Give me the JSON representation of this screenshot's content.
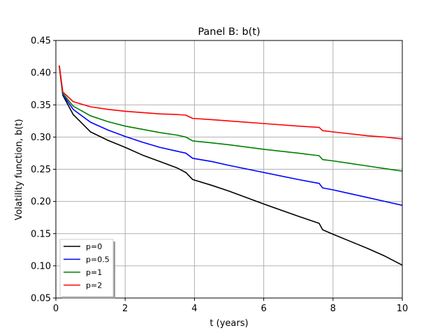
{
  "chart_data": {
    "type": "line",
    "title": "Panel B: b(t)",
    "xlabel": "t (years)",
    "ylabel": "Volatility function, b(t)",
    "xlim": [
      0,
      10
    ],
    "ylim": [
      0.05,
      0.45
    ],
    "xticks": [
      0,
      2,
      4,
      6,
      8,
      10
    ],
    "xtick_labels": [
      "0",
      "2",
      "4",
      "6",
      "8",
      "10"
    ],
    "yticks": [
      0.05,
      0.1,
      0.15,
      0.2,
      0.25,
      0.3,
      0.35,
      0.4,
      0.45
    ],
    "ytick_labels": [
      "0.05",
      "0.10",
      "0.15",
      "0.20",
      "0.25",
      "0.30",
      "0.35",
      "0.40",
      "0.45"
    ],
    "grid": true,
    "legend_position": "lower-left",
    "series": [
      {
        "name": "p=0",
        "color": "#000000",
        "x": [
          0.08,
          0.1,
          0.2,
          0.5,
          1.0,
          1.5,
          2.0,
          2.5,
          3.0,
          3.5,
          3.75,
          3.95,
          4.5,
          5.0,
          6.0,
          7.0,
          7.6,
          7.7,
          8.0,
          8.5,
          9.0,
          9.5,
          10.0
        ],
        "y": [
          0.41,
          0.41,
          0.365,
          0.335,
          0.308,
          0.295,
          0.284,
          0.272,
          0.262,
          0.252,
          0.245,
          0.234,
          0.225,
          0.216,
          0.196,
          0.177,
          0.166,
          0.156,
          0.149,
          0.138,
          0.127,
          0.115,
          0.101
        ]
      },
      {
        "name": "p=0.5",
        "color": "#0000ff",
        "x": [
          0.08,
          0.1,
          0.2,
          0.5,
          1.0,
          1.5,
          2.0,
          2.5,
          3.0,
          3.5,
          3.75,
          3.95,
          4.5,
          5.0,
          6.0,
          7.0,
          7.6,
          7.7,
          8.0,
          8.5,
          9.0,
          9.5,
          10.0
        ],
        "y": [
          0.41,
          0.41,
          0.366,
          0.343,
          0.323,
          0.311,
          0.301,
          0.292,
          0.284,
          0.278,
          0.275,
          0.267,
          0.262,
          0.256,
          0.245,
          0.234,
          0.228,
          0.221,
          0.218,
          0.212,
          0.206,
          0.2,
          0.194
        ]
      },
      {
        "name": "p=1",
        "color": "#008000",
        "x": [
          0.08,
          0.1,
          0.2,
          0.5,
          1.0,
          1.5,
          2.0,
          2.5,
          3.0,
          3.5,
          3.75,
          3.95,
          4.5,
          5.0,
          6.0,
          7.0,
          7.6,
          7.7,
          8.0,
          8.5,
          9.0,
          9.5,
          10.0
        ],
        "y": [
          0.41,
          0.41,
          0.368,
          0.348,
          0.333,
          0.324,
          0.317,
          0.312,
          0.307,
          0.303,
          0.3,
          0.294,
          0.291,
          0.288,
          0.281,
          0.275,
          0.271,
          0.265,
          0.263,
          0.259,
          0.255,
          0.251,
          0.247
        ]
      },
      {
        "name": "p=2",
        "color": "#ff0000",
        "x": [
          0.08,
          0.1,
          0.2,
          0.5,
          1.0,
          1.5,
          2.0,
          2.5,
          3.0,
          3.5,
          3.75,
          3.95,
          4.5,
          5.0,
          6.0,
          7.0,
          7.6,
          7.7,
          8.0,
          8.5,
          9.0,
          9.5,
          10.0
        ],
        "y": [
          0.41,
          0.41,
          0.37,
          0.355,
          0.347,
          0.343,
          0.34,
          0.338,
          0.336,
          0.335,
          0.334,
          0.329,
          0.327,
          0.325,
          0.321,
          0.317,
          0.315,
          0.31,
          0.308,
          0.305,
          0.302,
          0.3,
          0.297
        ]
      }
    ]
  }
}
